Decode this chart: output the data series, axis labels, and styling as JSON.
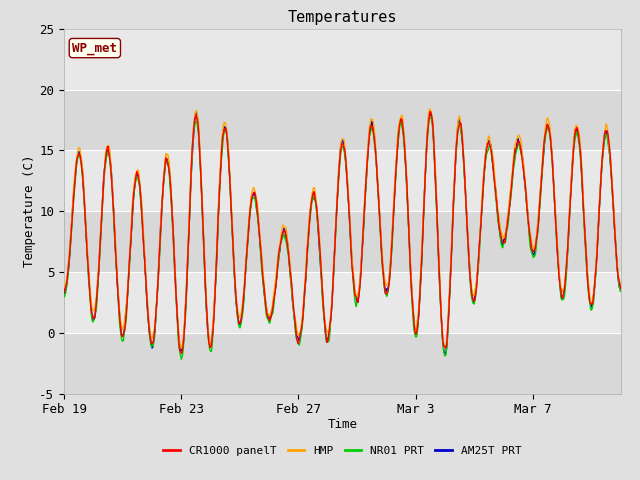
{
  "title": "Temperatures",
  "xlabel": "Time",
  "ylabel": "Temperature (C)",
  "ylim": [
    -5,
    25
  ],
  "yticks": [
    -5,
    0,
    5,
    10,
    15,
    20,
    25
  ],
  "bg_color": "#e0e0e0",
  "plot_bg_inner": "#dcdcdc",
  "annotation_label": "WP_met",
  "annotation_color": "#8b0000",
  "annotation_bg": "#fffff0",
  "annotation_border": "#8b0000",
  "series_colors": [
    "#ff0000",
    "#ffa500",
    "#00cc00",
    "#0000cc"
  ],
  "series_labels": [
    "CR1000 panelT",
    "HMP",
    "NR01 PRT",
    "AM25T PRT"
  ],
  "xtick_labels": [
    "Feb 19",
    "Feb 23",
    "Feb 27",
    "Mar 3",
    "Mar 7"
  ],
  "xtick_positions": [
    0,
    4,
    8,
    12,
    16
  ],
  "xlim": [
    0,
    19
  ],
  "font_family": "monospace",
  "linewidth": 1.0,
  "seed": 42,
  "band_colors": [
    "#d8d8d8",
    "#e8e8e8"
  ],
  "band_ranges": [
    [
      -5,
      0
    ],
    [
      0,
      5
    ],
    [
      5,
      10
    ],
    [
      10,
      15
    ],
    [
      15,
      20
    ],
    [
      20,
      25
    ]
  ]
}
